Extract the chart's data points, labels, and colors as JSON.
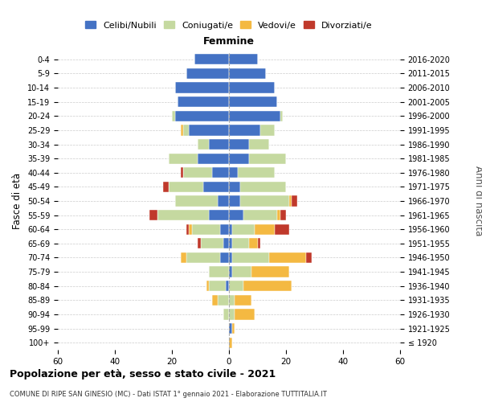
{
  "age_groups": [
    "100+",
    "95-99",
    "90-94",
    "85-89",
    "80-84",
    "75-79",
    "70-74",
    "65-69",
    "60-64",
    "55-59",
    "50-54",
    "45-49",
    "40-44",
    "35-39",
    "30-34",
    "25-29",
    "20-24",
    "15-19",
    "10-14",
    "5-9",
    "0-4"
  ],
  "birth_years": [
    "≤ 1920",
    "1921-1925",
    "1926-1930",
    "1931-1935",
    "1936-1940",
    "1941-1945",
    "1946-1950",
    "1951-1955",
    "1956-1960",
    "1961-1965",
    "1966-1970",
    "1971-1975",
    "1976-1980",
    "1981-1985",
    "1986-1990",
    "1991-1995",
    "1996-2000",
    "2001-2005",
    "2006-2010",
    "2011-2015",
    "2016-2020"
  ],
  "males": {
    "celibi": [
      0,
      0,
      0,
      0,
      1,
      0,
      3,
      2,
      3,
      7,
      4,
      9,
      6,
      11,
      7,
      14,
      19,
      18,
      19,
      15,
      12
    ],
    "coniugati": [
      0,
      0,
      2,
      4,
      6,
      7,
      12,
      8,
      10,
      18,
      15,
      12,
      10,
      10,
      4,
      2,
      1,
      0,
      0,
      0,
      0
    ],
    "vedovi": [
      0,
      0,
      0,
      2,
      1,
      0,
      2,
      0,
      1,
      0,
      0,
      0,
      0,
      0,
      0,
      1,
      0,
      0,
      0,
      0,
      0
    ],
    "divorziati": [
      0,
      0,
      0,
      0,
      0,
      0,
      0,
      1,
      1,
      3,
      0,
      2,
      1,
      0,
      0,
      0,
      0,
      0,
      0,
      0,
      0
    ]
  },
  "females": {
    "nubili": [
      0,
      1,
      0,
      0,
      0,
      1,
      1,
      1,
      1,
      5,
      4,
      4,
      3,
      7,
      7,
      11,
      18,
      17,
      16,
      13,
      10
    ],
    "coniugate": [
      0,
      0,
      2,
      2,
      5,
      7,
      13,
      6,
      8,
      12,
      17,
      16,
      13,
      13,
      7,
      5,
      1,
      0,
      0,
      0,
      0
    ],
    "vedove": [
      1,
      1,
      7,
      6,
      17,
      13,
      13,
      3,
      7,
      1,
      1,
      0,
      0,
      0,
      0,
      0,
      0,
      0,
      0,
      0,
      0
    ],
    "divorziate": [
      0,
      0,
      0,
      0,
      0,
      0,
      2,
      1,
      5,
      2,
      2,
      0,
      0,
      0,
      0,
      0,
      0,
      0,
      0,
      0,
      0
    ]
  },
  "colors": {
    "celibi": "#4472c4",
    "coniugati": "#c5d9a0",
    "vedovi": "#f4b942",
    "divorziati": "#c0392b"
  },
  "title": "Popolazione per età, sesso e stato civile - 2021",
  "subtitle": "COMUNE DI RIPE SAN GINESIO (MC) - Dati ISTAT 1° gennaio 2021 - Elaborazione TUTTITALIA.IT",
  "xlabel_right": "Femmine",
  "ylabel_left": "Fasce di età",
  "ylabel_right": "Anni di nascita",
  "xlim": 60,
  "legend_labels": [
    "Celibi/Nubili",
    "Coniugati/e",
    "Vedovi/e",
    "Divorziati/e"
  ],
  "background_color": "#ffffff",
  "grid_color": "#cccccc"
}
